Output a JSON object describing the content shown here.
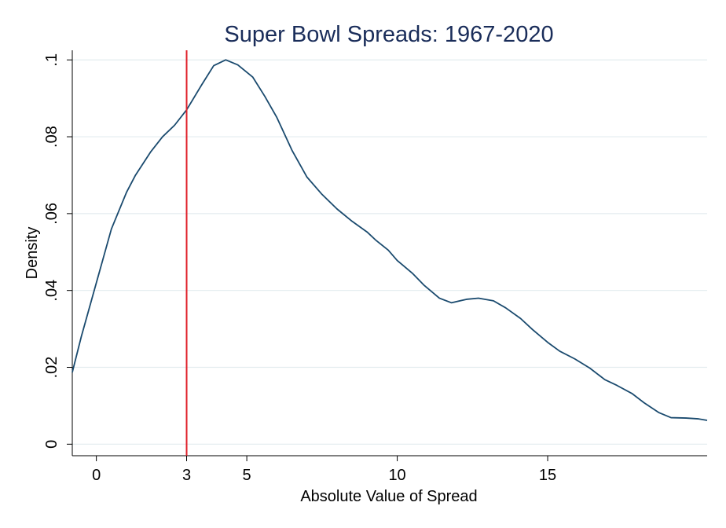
{
  "chart_data": {
    "type": "line",
    "title": "Super Bowl Spreads: 1967-2020",
    "xlabel": "Absolute Value of Spread",
    "ylabel": "Density",
    "xlim": [
      -0.8,
      20.3
    ],
    "ylim": [
      -0.003,
      0.1025
    ],
    "x_ticks": [
      {
        "value": 0,
        "label": "0"
      },
      {
        "value": 3,
        "label": "3"
      },
      {
        "value": 5,
        "label": "5"
      },
      {
        "value": 10,
        "label": "10"
      },
      {
        "value": 15,
        "label": "15"
      }
    ],
    "y_ticks": [
      {
        "value": 0,
        "label": "0"
      },
      {
        "value": 0.02,
        "label": ".02"
      },
      {
        "value": 0.04,
        "label": ".04"
      },
      {
        "value": 0.06,
        "label": ".06"
      },
      {
        "value": 0.08,
        "label": ".08"
      },
      {
        "value": 0.1,
        "label": ".1"
      }
    ],
    "grid": true,
    "legend": "none",
    "reference_line": {
      "x": 3,
      "color": "#e0202a"
    },
    "series": [
      {
        "color": "#1a4a6e",
        "x": [
          -0.8,
          -0.5,
          0,
          0.5,
          1.0,
          1.3,
          1.8,
          2.2,
          2.6,
          3.0,
          3.5,
          3.9,
          4.3,
          4.7,
          5.2,
          5.6,
          6.0,
          6.5,
          7.0,
          7.5,
          8.0,
          8.5,
          9.0,
          9.3,
          9.7,
          10.0,
          10.5,
          10.9,
          11.4,
          11.8,
          12.3,
          12.7,
          13.2,
          13.6,
          14.1,
          14.5,
          15.0,
          15.4,
          15.9,
          16.4,
          16.9,
          17.3,
          17.8,
          18.2,
          18.7,
          19.1,
          19.6,
          20.0,
          20.3
        ],
        "y": [
          0.0187,
          0.028,
          0.042,
          0.056,
          0.0655,
          0.07,
          0.076,
          0.08,
          0.083,
          0.087,
          0.0935,
          0.0985,
          0.1,
          0.0987,
          0.0955,
          0.0905,
          0.085,
          0.0765,
          0.0695,
          0.065,
          0.0612,
          0.058,
          0.0552,
          0.053,
          0.0505,
          0.0478,
          0.0445,
          0.0413,
          0.038,
          0.0368,
          0.0377,
          0.038,
          0.0373,
          0.0355,
          0.0327,
          0.0298,
          0.0265,
          0.0242,
          0.0222,
          0.0198,
          0.0168,
          0.0153,
          0.0132,
          0.0108,
          0.0082,
          0.0069,
          0.0068,
          0.0066,
          0.0062
        ]
      }
    ]
  }
}
